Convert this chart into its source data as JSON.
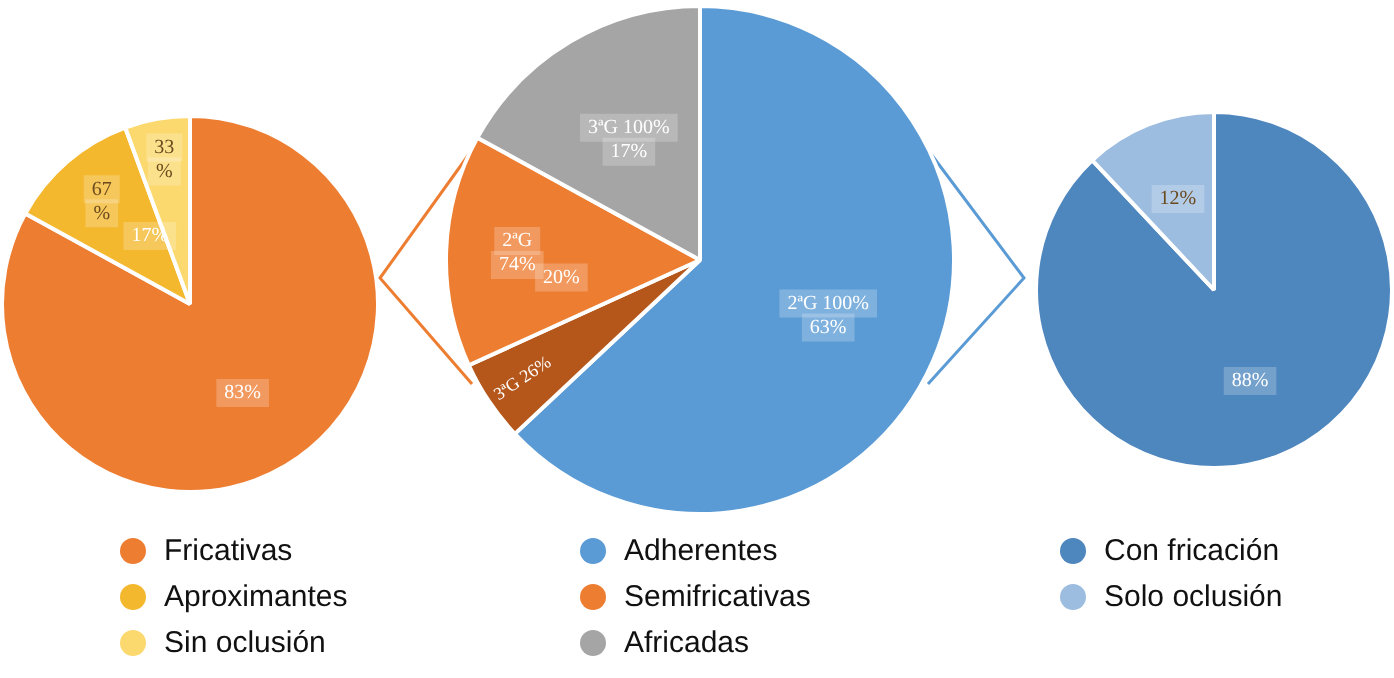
{
  "chart_data": [
    {
      "type": "pie",
      "categories": [
        "Fricativas",
        "Aproximantes",
        "Sin oclusión"
      ],
      "values": [
        83,
        11.4,
        5.6
      ],
      "colors": [
        "#ed7d31",
        "#f4b82e",
        "#fcd96e"
      ],
      "value_labels": [
        "83%",
        null,
        null
      ],
      "annotations": [
        "17%",
        "67\n%",
        "33\n%"
      ],
      "legend": "bottom"
    },
    {
      "type": "pie",
      "categories": [
        "Adherentes",
        null,
        "Semifricativas",
        "Africadas"
      ],
      "values": [
        63,
        5.2,
        14.8,
        17
      ],
      "colors": [
        "#5b9bd5",
        "#b5571b",
        "#ed7d31",
        "#a5a5a5"
      ],
      "value_labels": [
        "2ªG 100%\n63%",
        null,
        null,
        "3ªG 100%\n17%"
      ],
      "annotations": [
        "20%",
        "3ªG 26%",
        "2ªG\n74%"
      ],
      "legend": "bottom"
    },
    {
      "type": "pie",
      "categories": [
        "Con fricación",
        "Solo oclusión"
      ],
      "values": [
        88,
        12
      ],
      "colors": [
        "#4e86be",
        "#9dbde0"
      ],
      "value_labels": [
        "88%",
        "12%"
      ],
      "legend": "bottom"
    }
  ]
}
